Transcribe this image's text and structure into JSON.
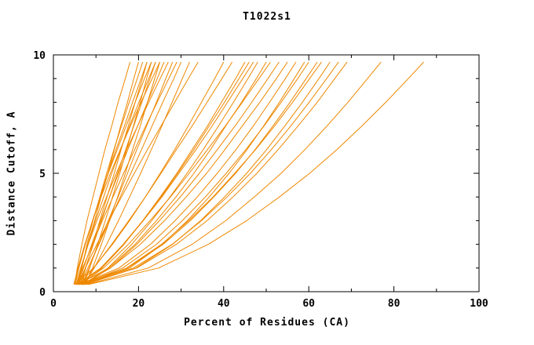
{
  "chart_data": {
    "type": "line",
    "title": "T1022s1",
    "xlabel": "Percent of Residues (CA)",
    "ylabel": "Distance Cutoff, A",
    "xlim": [
      0,
      100
    ],
    "ylim": [
      0,
      10
    ],
    "x_ticks": [
      0,
      20,
      40,
      60,
      80,
      100
    ],
    "y_ticks": [
      0,
      5,
      10
    ],
    "x_minor_step": 10,
    "y_minor_step": 1,
    "grid": false,
    "legend": "none",
    "line_color": "#EE8800",
    "axis_color": "#000000",
    "y_levels": [
      0.3,
      1,
      2,
      3,
      4,
      5,
      6,
      7,
      8,
      9,
      9.7
    ],
    "series_x": [
      [
        5,
        5.6,
        6.7,
        7.9,
        9.3,
        10.7,
        12.1,
        13.7,
        15.2,
        16.9,
        18
      ],
      [
        5.5,
        6.6,
        8.1,
        9.7,
        11.2,
        12.8,
        14.3,
        15.8,
        17.4,
        18.9,
        20
      ],
      [
        6,
        6.7,
        7.9,
        9.3,
        10.9,
        12.5,
        14.2,
        16,
        17.8,
        19.7,
        21
      ],
      [
        4.8,
        5.8,
        7.4,
        9.2,
        11,
        12.8,
        14.7,
        16.7,
        18.6,
        20.6,
        22
      ],
      [
        6.5,
        7.6,
        9.3,
        10.9,
        12.6,
        14.3,
        15.9,
        17.6,
        19.2,
        20.9,
        22
      ],
      [
        5.2,
        6,
        7.5,
        9.2,
        11,
        12.9,
        15,
        17.1,
        19.2,
        21.4,
        23
      ],
      [
        7,
        8.5,
        10.4,
        12.2,
        13.9,
        15.6,
        17.2,
        18.8,
        20.4,
        21.9,
        23
      ],
      [
        5.8,
        6.6,
        8.1,
        9.9,
        11.8,
        13.7,
        15.8,
        17.9,
        20.1,
        22.4,
        24
      ],
      [
        6.2,
        7.5,
        9.4,
        11.3,
        13.2,
        15.1,
        17,
        18.9,
        20.8,
        22.7,
        24
      ],
      [
        5,
        5.8,
        7.4,
        9.2,
        11.2,
        13.4,
        15.7,
        18.1,
        20.6,
        23.2,
        25
      ],
      [
        7.5,
        9.2,
        11.3,
        13.2,
        15.1,
        16.9,
        18.6,
        20.4,
        22.1,
        23.8,
        25
      ],
      [
        6,
        7.1,
        9,
        11.1,
        13.2,
        15.3,
        17.5,
        19.8,
        22.1,
        24.4,
        26
      ],
      [
        5.4,
        6.4,
        8.2,
        10.2,
        12.5,
        14.8,
        17.2,
        19.8,
        22.4,
        25.1,
        27
      ],
      [
        6.8,
        8.4,
        10.6,
        12.9,
        15.2,
        17.4,
        19.6,
        21.9,
        24.2,
        26.4,
        28
      ],
      [
        5.6,
        6.9,
        9.2,
        11.5,
        14,
        16.5,
        19.1,
        21.7,
        24.4,
        27.1,
        29
      ],
      [
        6.4,
        8.1,
        10.7,
        13.2,
        15.7,
        18.2,
        20.7,
        23.2,
        25.7,
        28.3,
        30
      ],
      [
        7.2,
        9.6,
        12.5,
        15.3,
        17.9,
        20.5,
        23,
        25.5,
        27.9,
        30.3,
        32
      ],
      [
        5.9,
        7.5,
        10.2,
        13,
        16,
        19,
        22.1,
        25.3,
        28.5,
        31.7,
        34
      ],
      [
        5,
        9.4,
        13.9,
        17.9,
        21.6,
        25.1,
        28.5,
        31.7,
        34.8,
        37.9,
        40
      ],
      [
        6,
        9.5,
        13.7,
        17.7,
        21.6,
        25.3,
        28.9,
        32.6,
        36.1,
        39.6,
        42
      ],
      [
        5.5,
        11.1,
        16.4,
        21,
        25.1,
        29,
        32.6,
        36.2,
        39.5,
        42.8,
        45
      ],
      [
        6.5,
        11.4,
        16.6,
        21,
        25.3,
        29.2,
        33,
        36.6,
        40.2,
        43.6,
        46
      ],
      [
        6,
        11.1,
        16.5,
        21.1,
        25.5,
        29.5,
        33.5,
        37.3,
        40.9,
        44.5,
        47
      ],
      [
        7,
        12.8,
        18.4,
        23.1,
        27.4,
        31.4,
        35.2,
        38.8,
        42.3,
        45.7,
        48
      ],
      [
        5.8,
        13,
        19.2,
        24.2,
        28.8,
        33,
        36.9,
        40.5,
        44.2,
        47.7,
        50
      ],
      [
        6.2,
        11.8,
        17.6,
        22.7,
        27.5,
        31.9,
        36.2,
        40.4,
        44.4,
        48.3,
        51
      ],
      [
        6.8,
        13.4,
        19.6,
        24.9,
        29.8,
        34.3,
        38.5,
        42.7,
        46.6,
        50.4,
        53
      ],
      [
        5.4,
        13.4,
        20.4,
        26.1,
        31.2,
        36,
        40.3,
        44.4,
        48.5,
        52.4,
        55
      ],
      [
        6,
        15.4,
        22.8,
        28.6,
        33.8,
        38.5,
        42.9,
        47,
        50.8,
        54.5,
        57
      ],
      [
        7,
        17.9,
        25.6,
        31.5,
        36.6,
        41.3,
        45.5,
        49.4,
        53.1,
        56.6,
        59
      ],
      [
        6.5,
        16.3,
        24.2,
        30.3,
        35.7,
        40.6,
        45.2,
        49.5,
        53.5,
        57.4,
        60
      ],
      [
        5.6,
        17.4,
        25.8,
        32.2,
        37.7,
        42.8,
        47.4,
        51.6,
        55.6,
        59.4,
        62
      ],
      [
        6.9,
        17.2,
        25.4,
        31.8,
        37.5,
        42.6,
        47.5,
        52,
        56.2,
        60.2,
        63
      ],
      [
        7.4,
        19.4,
        28,
        34.6,
        40.2,
        45.4,
        50.1,
        54.4,
        58.5,
        62.4,
        65
      ],
      [
        6.1,
        18.8,
        27.9,
        34.8,
        40.8,
        46.3,
        51.2,
        55.8,
        60.1,
        64.2,
        67
      ],
      [
        6.6,
        19.6,
        28.9,
        36.1,
        42.2,
        47.8,
        52.8,
        57.5,
        62,
        66.1,
        69
      ],
      [
        7.8,
        22.3,
        32.6,
        40.5,
        47.2,
        53.5,
        59.1,
        64.3,
        69.2,
        73.8,
        77
      ],
      [
        8.2,
        24.7,
        36.4,
        45.4,
        53.1,
        60.2,
        66.6,
        72.5,
        78.1,
        83.4,
        87
      ]
    ]
  }
}
